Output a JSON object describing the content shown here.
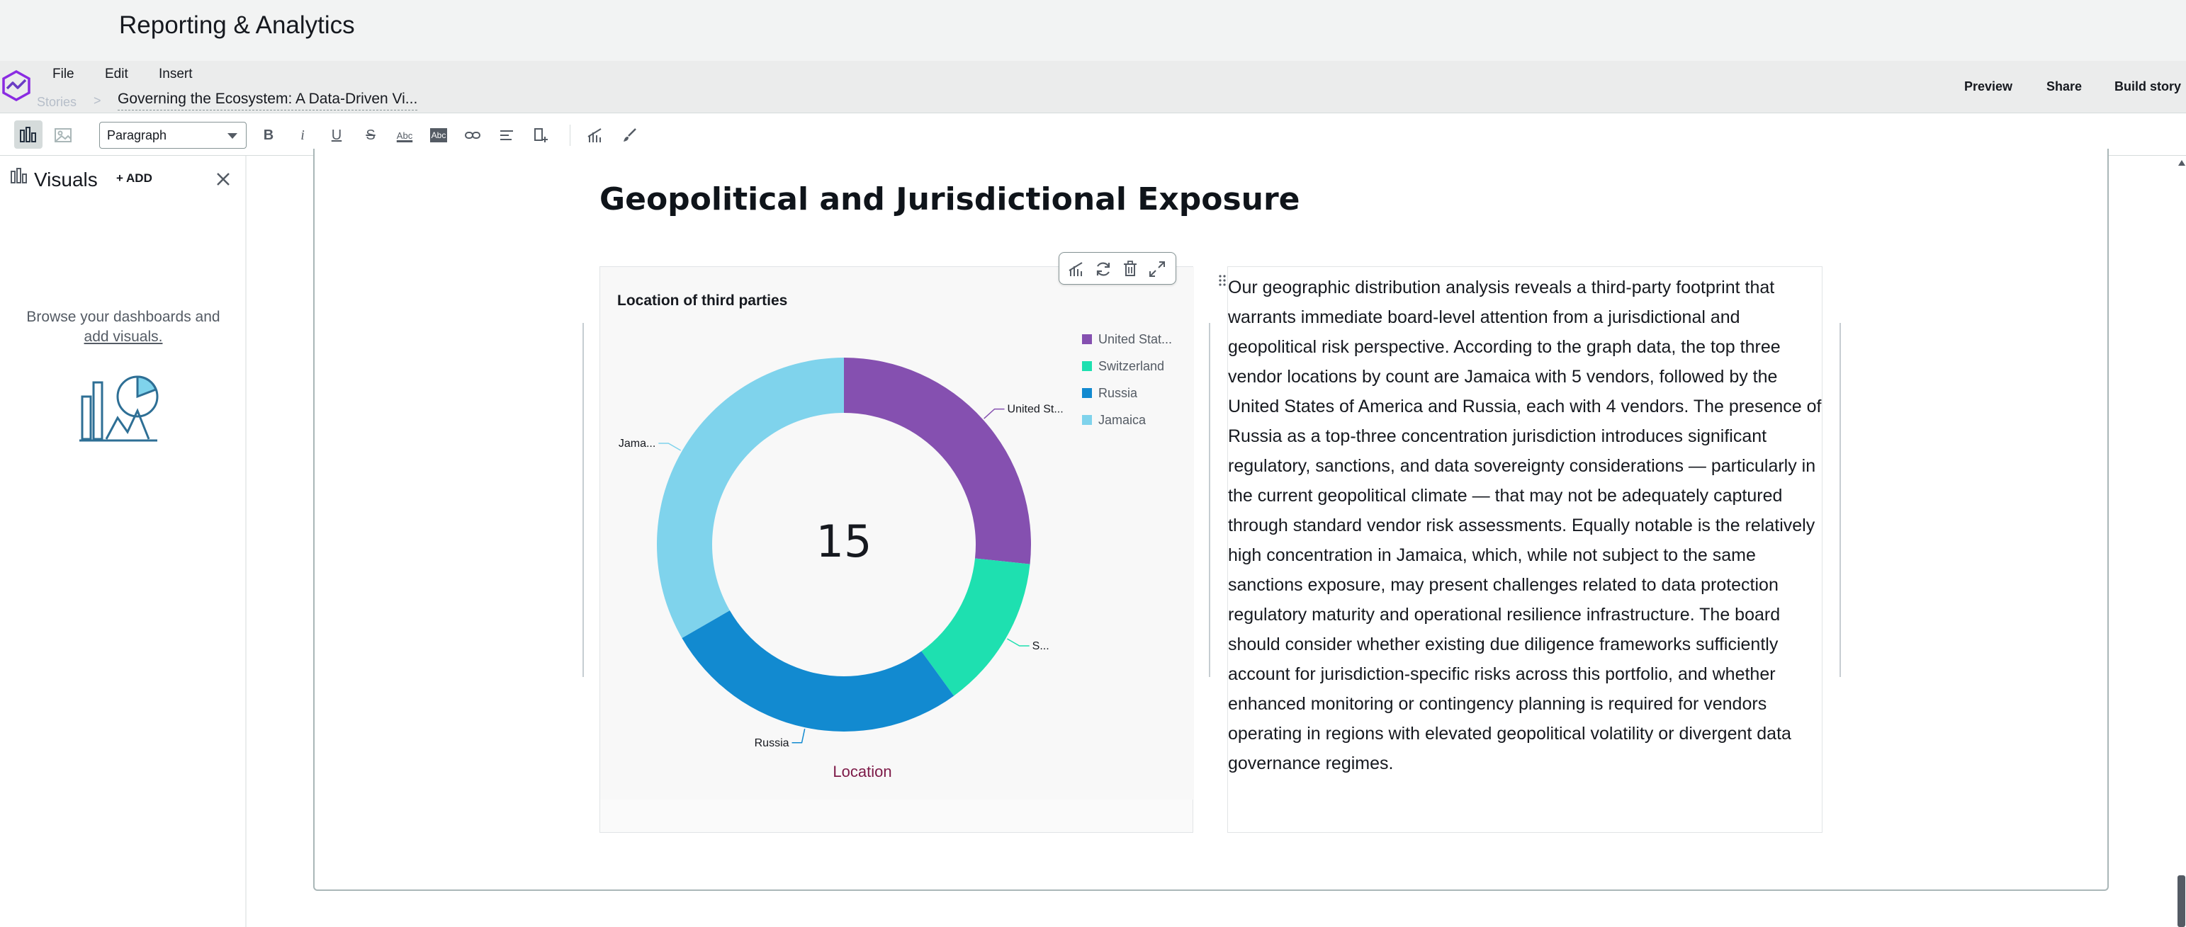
{
  "app": {
    "title": "Reporting & Analytics"
  },
  "menu": {
    "file": "File",
    "edit": "Edit",
    "insert": "Insert"
  },
  "breadcrumb": {
    "stories": "Stories",
    "separator": ">",
    "doc_title": "Governing the Ecosystem: A Data-Driven Vi..."
  },
  "actions": {
    "preview": "Preview",
    "share": "Share",
    "build_story": "Build story"
  },
  "toolbar": {
    "paragraph_style": "Paragraph",
    "bold": "B",
    "italic": "i",
    "underline": "U",
    "strike": "S",
    "text_color_label": "Abc",
    "highlight_label": "Abc"
  },
  "left_panel": {
    "heading": "Visuals",
    "add_label": "+ ADD",
    "browse_text": "Browse your dashboards and",
    "add_visuals_link": "add visuals."
  },
  "section": {
    "heading": "Geopolitical and Jurisdictional Exposure"
  },
  "chart_data": {
    "type": "pie",
    "title": "Location of third parties",
    "xlabel": "Location",
    "center_total": "15",
    "legend_position": "right",
    "categories": [
      "United States of America",
      "Switzerland",
      "Russia",
      "Jamaica"
    ],
    "legend_labels": [
      "United Stat...",
      "Switzerland",
      "Russia",
      "Jamaica"
    ],
    "slice_labels": [
      "United St...",
      "S...",
      "Russia",
      "Jama..."
    ],
    "values": [
      4,
      2,
      4,
      5
    ],
    "colors": [
      "#8550b0",
      "#1ee0b0",
      "#128ad0",
      "#7fd3ec"
    ]
  },
  "narrative": {
    "text": "Our geographic distribution analysis reveals a third-party footprint that warrants immediate board-level attention from a jurisdictional and geopolitical risk perspective. According to the graph data, the top three vendor locations by count are Jamaica with 5 vendors, followed by the United States of America and Russia, each with 4 vendors. The presence of Russia as a top-three concentration jurisdiction introduces significant regulatory, sanctions, and data sovereignty considerations — particularly in the current geopolitical climate — that may not be adequately captured through standard vendor risk assessments. Equally notable is the relatively high concentration in Jamaica, which, while not subject to the same sanctions exposure, may present challenges related to data protection regulatory maturity and operational resilience infrastructure. The board should consider whether existing due diligence frameworks sufficiently account for jurisdiction-specific risks across this portfolio, and whether enhanced monitoring or contingency planning is required for vendors operating in regions with elevated geopolitical volatility or divergent data governance regimes."
  }
}
